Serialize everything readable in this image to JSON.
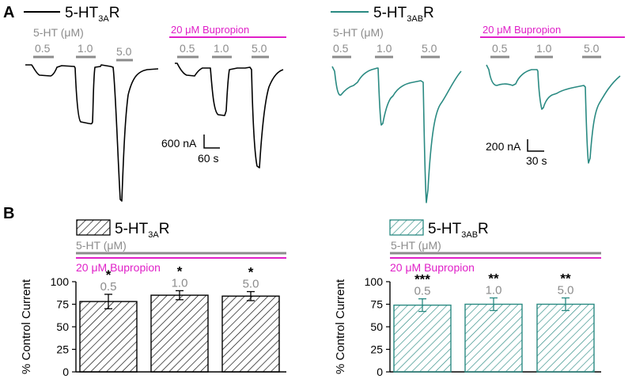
{
  "panels": {
    "a": "A",
    "b": "B"
  },
  "colors": {
    "black": "#000000",
    "teal": "#2a8a82",
    "gray": "#8c8c8c",
    "magenta": "#e020c8"
  },
  "receptors": {
    "r3a": {
      "base": "5-HT",
      "sub": "3A",
      "end": "R"
    },
    "r3ab": {
      "base": "5-HT",
      "sub": "3AB",
      "end": "R"
    }
  },
  "labels": {
    "agonist": "5-HT (μM)",
    "drug": "20 μM Bupropion",
    "concentrations": [
      "0.5",
      "1.0",
      "5.0"
    ]
  },
  "scale_bars": [
    {
      "current": "600 nA",
      "time": "60 s"
    },
    {
      "current": "200 nA",
      "time": "30 s"
    }
  ],
  "chart_data": [
    {
      "type": "bar",
      "title": "5-HT3AR",
      "categories": [
        "0.5",
        "1.0",
        "5.0"
      ],
      "values": [
        78,
        85,
        84
      ],
      "errors": [
        8,
        5,
        5
      ],
      "significance": [
        "*",
        "*",
        "*"
      ],
      "ylabel": "% Control Current",
      "ylim": [
        0,
        100
      ],
      "yticks": [
        "0",
        "25",
        "50",
        "75",
        "100"
      ],
      "fill": "hatched black"
    },
    {
      "type": "bar",
      "title": "5-HT3ABR",
      "categories": [
        "0.5",
        "1.0",
        "5.0"
      ],
      "values": [
        74,
        75,
        75
      ],
      "errors": [
        7,
        7,
        7
      ],
      "significance": [
        "***",
        "**",
        "**"
      ],
      "ylabel": "% Control Current",
      "ylim": [
        0,
        100
      ],
      "yticks": [
        "0",
        "25",
        "50",
        "75",
        "100"
      ],
      "fill": "hatched teal"
    }
  ]
}
